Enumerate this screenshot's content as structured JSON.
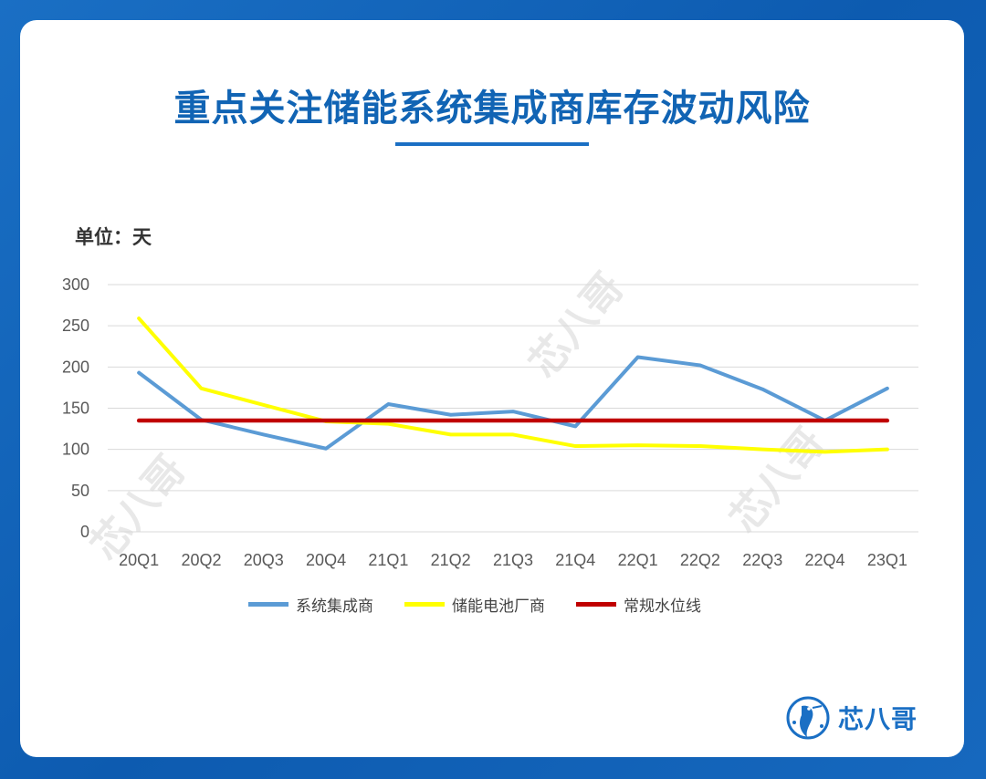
{
  "title": "重点关注储能系统集成商库存波动风险",
  "unit_label": "单位：天",
  "watermark_text": "芯八哥",
  "logo_text": "芯八哥",
  "colors": {
    "title": "#1164b4",
    "series_integrator": "#5b9bd5",
    "series_battery": "#ffff00",
    "series_normal": "#c00000"
  },
  "chart_data": {
    "type": "line",
    "categories": [
      "20Q1",
      "20Q2",
      "20Q3",
      "20Q4",
      "21Q1",
      "21Q2",
      "21Q3",
      "21Q4",
      "22Q1",
      "22Q2",
      "22Q3",
      "22Q4",
      "23Q1"
    ],
    "ylim": [
      0,
      300
    ],
    "yticks": [
      0,
      50,
      100,
      150,
      200,
      250,
      300
    ],
    "grid": true,
    "legend_position": "bottom",
    "series": [
      {
        "name": "系统集成商",
        "color": "#5b9bd5",
        "values": [
          193,
          136,
          118,
          101,
          155,
          142,
          146,
          128,
          212,
          202,
          173,
          135,
          174
        ]
      },
      {
        "name": "储能电池厂商",
        "color": "#ffff00",
        "values": [
          259,
          174,
          154,
          134,
          131,
          118,
          118,
          104,
          105,
          104,
          100,
          97,
          100
        ]
      },
      {
        "name": "常规水位线",
        "color": "#c00000",
        "values": [
          135,
          135,
          135,
          135,
          135,
          135,
          135,
          135,
          135,
          135,
          135,
          135,
          135
        ]
      }
    ]
  }
}
